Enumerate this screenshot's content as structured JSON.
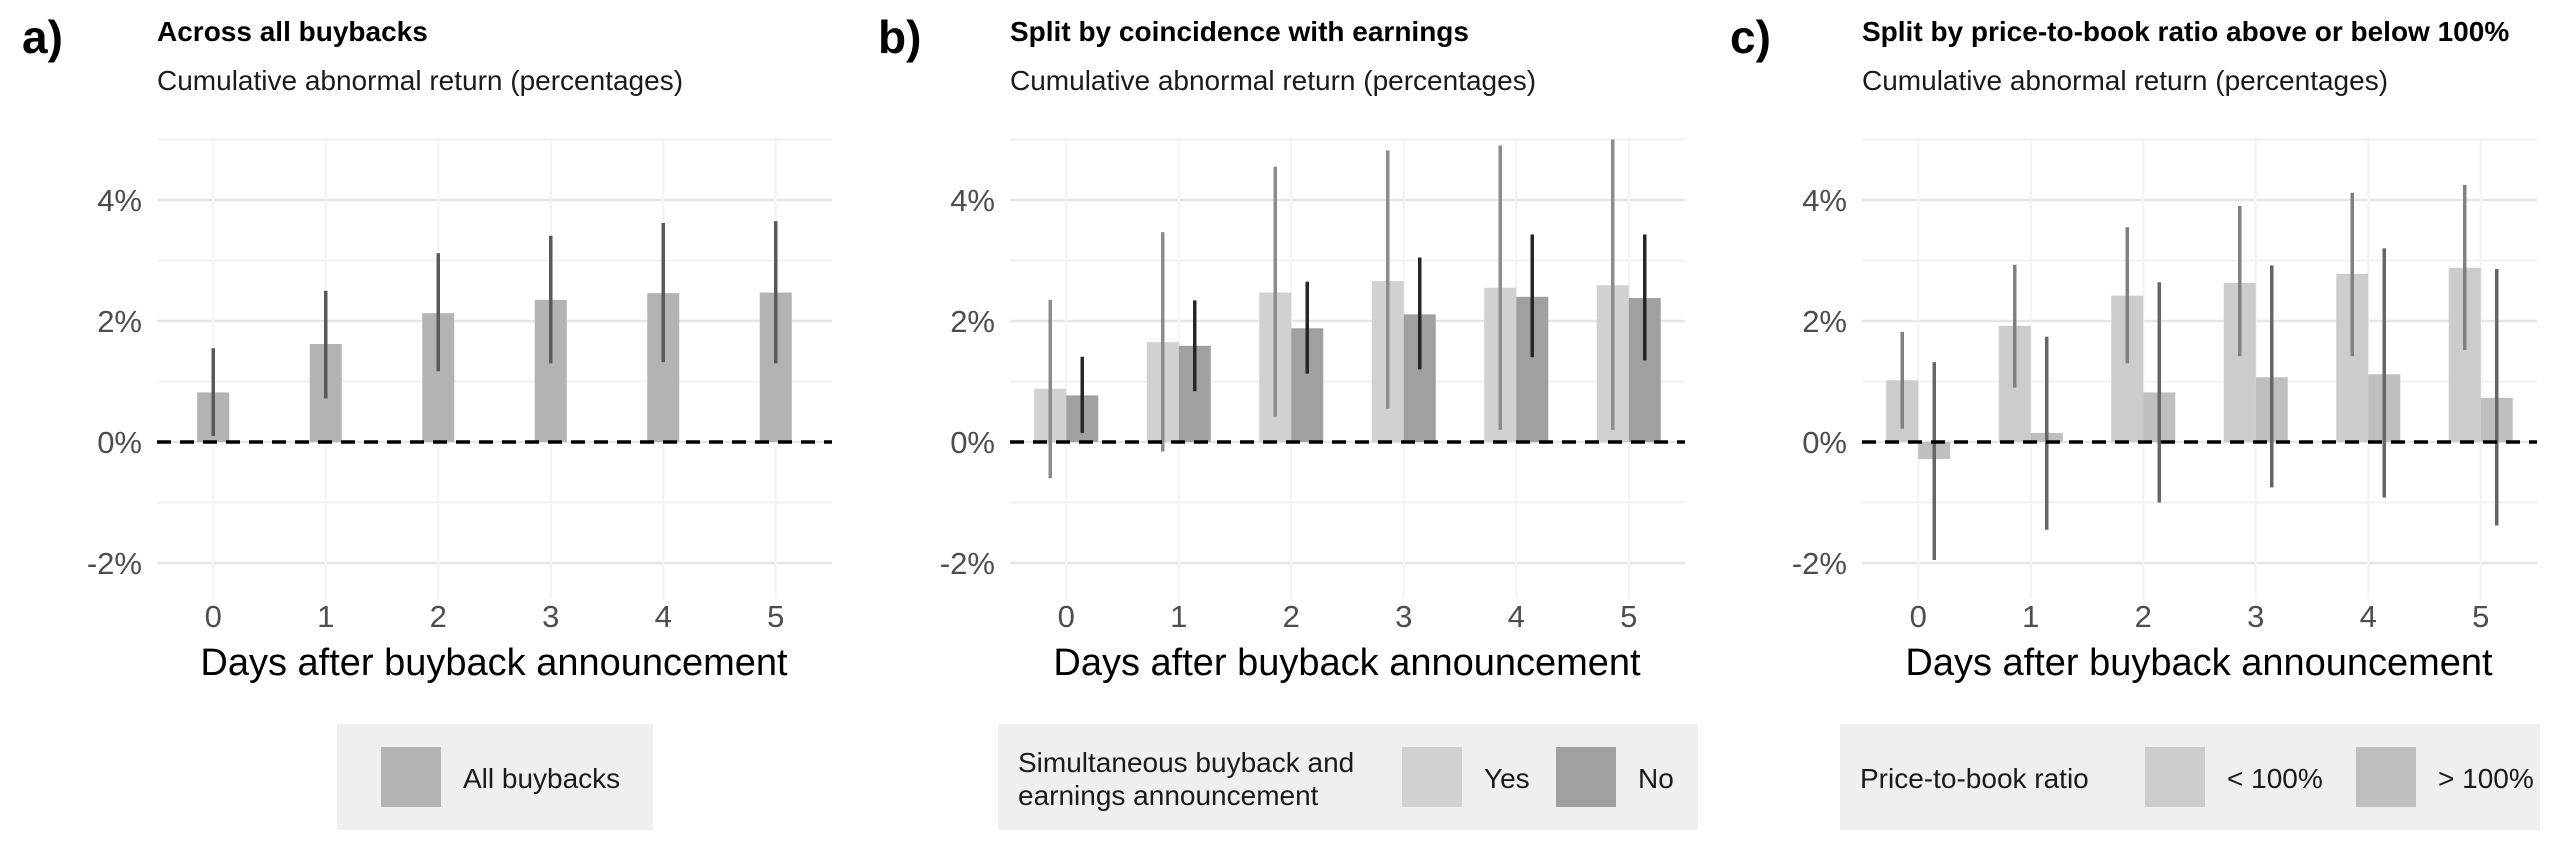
{
  "chart_data": [
    {
      "type": "bar",
      "panel_letter": "a)",
      "title": "Across all buybacks",
      "subtitle": "Cumulative abnormal return (percentages)",
      "xlabel": "Days after buyback announcement",
      "ylabel": "",
      "categories": [
        "0",
        "1",
        "2",
        "3",
        "4",
        "5"
      ],
      "ylim": [
        -2.6,
        5.0
      ],
      "yticks": [
        -2,
        0,
        2,
        4
      ],
      "ytick_labels": [
        "-2%",
        "0%",
        "2%",
        "4%"
      ],
      "grid": true,
      "reference_line": {
        "y": 0,
        "style": "dashed"
      },
      "legend": {
        "title": "",
        "position": "bottom"
      },
      "series": [
        {
          "name": "All buybacks",
          "color": "#b3b3b3",
          "errorbar_color": "#595959",
          "values": [
            0.82,
            1.62,
            2.13,
            2.35,
            2.46,
            2.47
          ],
          "lower": [
            0.1,
            0.72,
            1.17,
            1.3,
            1.32,
            1.3
          ],
          "upper": [
            1.55,
            2.5,
            3.12,
            3.41,
            3.62,
            3.65
          ]
        }
      ]
    },
    {
      "type": "bar",
      "panel_letter": "b)",
      "title": "Split by coincidence with earnings",
      "subtitle": "Cumulative abnormal return (percentages)",
      "xlabel": "Days after buyback announcement",
      "ylabel": "",
      "categories": [
        "0",
        "1",
        "2",
        "3",
        "4",
        "5"
      ],
      "ylim": [
        -2.6,
        5.0
      ],
      "yticks": [
        -2,
        0,
        2,
        4
      ],
      "ytick_labels": [
        "-2%",
        "0%",
        "2%",
        "4%"
      ],
      "grid": true,
      "reference_line": {
        "y": 0,
        "style": "dashed"
      },
      "legend": {
        "title": "Simultaneous buyback and earnings announcement",
        "title_lines": [
          "Simultaneous buyback and",
          "earnings announcement"
        ],
        "position": "bottom"
      },
      "series": [
        {
          "name": "Yes",
          "color": "#d1d1d1",
          "errorbar_color": "#8c8c8c",
          "values": [
            0.88,
            1.65,
            2.47,
            2.66,
            2.55,
            2.59
          ],
          "lower": [
            -0.6,
            -0.16,
            0.42,
            0.55,
            0.2,
            0.2
          ],
          "upper": [
            2.35,
            3.47,
            4.55,
            4.82,
            4.9,
            5.0
          ]
        },
        {
          "name": "No",
          "color": "#a0a0a0",
          "errorbar_color": "#262626",
          "values": [
            0.77,
            1.59,
            1.88,
            2.11,
            2.4,
            2.38
          ],
          "lower": [
            0.15,
            0.84,
            1.13,
            1.2,
            1.4,
            1.35
          ],
          "upper": [
            1.41,
            2.34,
            2.65,
            3.05,
            3.43,
            3.43
          ]
        }
      ]
    },
    {
      "type": "bar",
      "panel_letter": "c)",
      "title": "Split by price-to-book ratio above or below 100%",
      "subtitle": "Cumulative abnormal return (percentages)",
      "xlabel": "Days after buyback announcement",
      "ylabel": "",
      "categories": [
        "0",
        "1",
        "2",
        "3",
        "4",
        "5"
      ],
      "ylim": [
        -2.6,
        5.0
      ],
      "yticks": [
        -2,
        0,
        2,
        4
      ],
      "ytick_labels": [
        "-2%",
        "0%",
        "2%",
        "4%"
      ],
      "grid": true,
      "reference_line": {
        "y": 0,
        "style": "dashed"
      },
      "legend": {
        "title": "Price-to-book ratio",
        "title_lines": [
          "Price-to-book ratio"
        ],
        "position": "bottom"
      },
      "series": [
        {
          "name": "< 100%",
          "color": "#cccccc",
          "errorbar_color": "#808080",
          "values": [
            1.02,
            1.92,
            2.42,
            2.63,
            2.78,
            2.88
          ],
          "lower": [
            0.22,
            0.9,
            1.3,
            1.42,
            1.42,
            1.52
          ],
          "upper": [
            1.82,
            2.93,
            3.55,
            3.9,
            4.12,
            4.25
          ]
        },
        {
          "name": "> 100%",
          "color": "#bfbfbf",
          "errorbar_color": "#666666",
          "values": [
            -0.28,
            0.15,
            0.82,
            1.07,
            1.12,
            0.73
          ],
          "lower": [
            -1.95,
            -1.45,
            -1.0,
            -0.75,
            -0.92,
            -1.38
          ],
          "upper": [
            1.32,
            1.74,
            2.64,
            2.92,
            3.2,
            2.86
          ]
        }
      ]
    }
  ]
}
